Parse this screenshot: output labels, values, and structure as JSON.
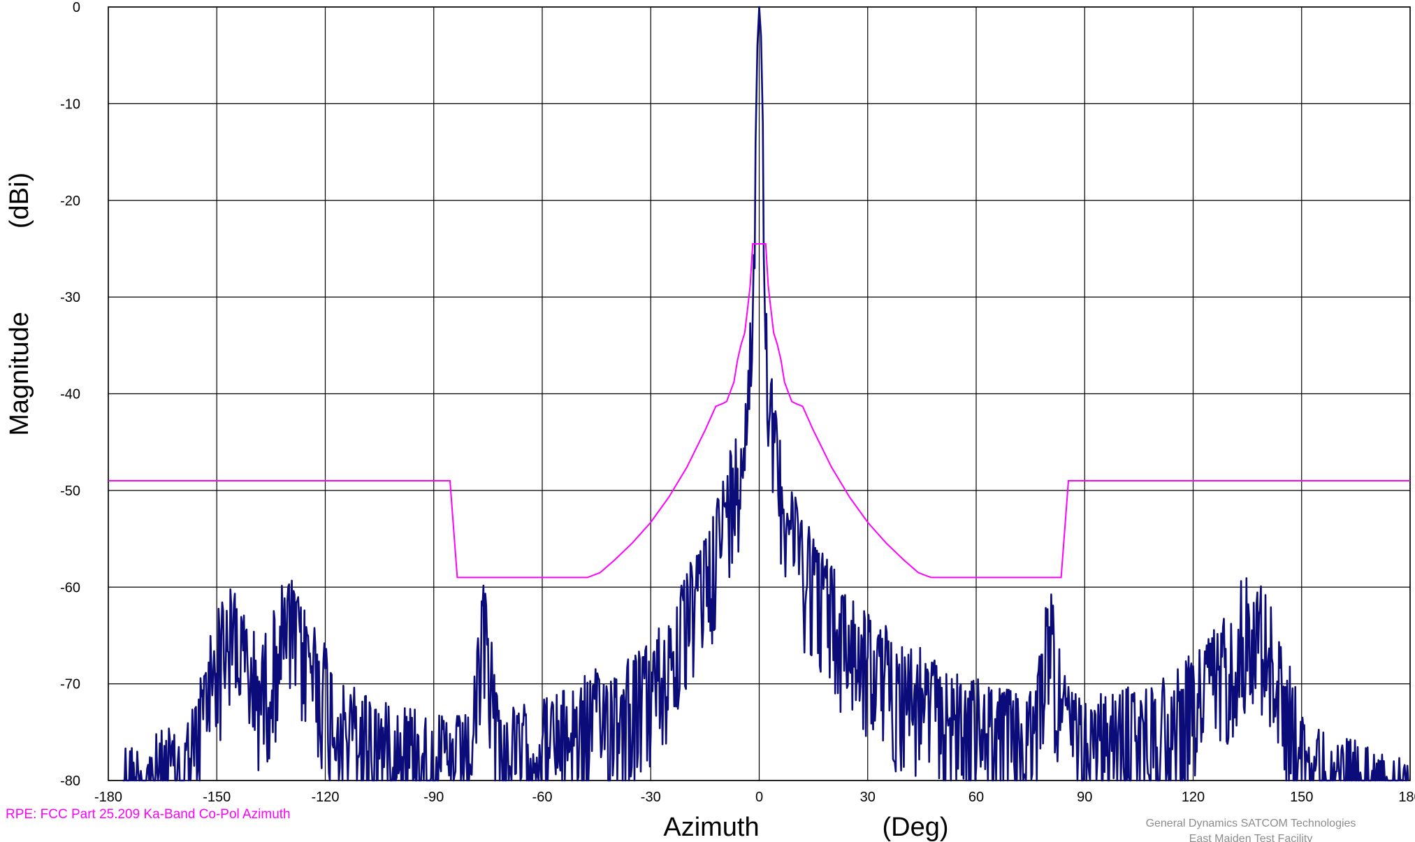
{
  "chart_data": {
    "type": "line",
    "xlabel": [
      "Azimuth",
      "(Deg)"
    ],
    "ylabel": [
      "Magnitude",
      "(dBi)"
    ],
    "xlim": [
      -180,
      180
    ],
    "ylim": [
      -80,
      0
    ],
    "xticks": [
      -180,
      -150,
      -120,
      -90,
      -60,
      -30,
      0,
      30,
      60,
      90,
      120,
      150,
      180
    ],
    "yticks": [
      0,
      -10,
      -20,
      -30,
      -40,
      -50,
      -60,
      -70,
      -80
    ],
    "grid": true,
    "annotations": {
      "rpe_label": "RPE: FCC Part 25.209 Ka-Band Co-Pol Azimuth",
      "credit_line1": "General Dynamics SATCOM Technologies",
      "credit_line2": "East Maiden Test Facility"
    },
    "colors": {
      "measured": "#0b0b7a",
      "rpe": "#ff00ff",
      "grid": "#000000"
    },
    "series": [
      {
        "key": "rpe",
        "x": [
          -180,
          -85.5,
          -83.5,
          -47.5,
          -44,
          -40,
          -35,
          -30,
          -25,
          -20,
          -15,
          -12,
          -10,
          -9,
          -7,
          -6,
          -5,
          -4,
          -3,
          -2.5,
          -1.8,
          1.8,
          2.5,
          3,
          4,
          5,
          6,
          7,
          9,
          10,
          12,
          15,
          20,
          25,
          30,
          35,
          40,
          44,
          47.5,
          83.5,
          85.5,
          180
        ],
        "y": [
          -49,
          -49,
          -59,
          -59,
          -58.5,
          -57.2,
          -55.4,
          -53.3,
          -50.7,
          -47.6,
          -43.8,
          -41.3,
          -41,
          -40.8,
          -38.8,
          -36.5,
          -34.9,
          -33.7,
          -30.5,
          -28.8,
          -24.5,
          -24.5,
          -28.8,
          -30.5,
          -33.7,
          -34.9,
          -36.5,
          -38.8,
          -40.8,
          -41,
          -41.3,
          -43.8,
          -47.6,
          -50.7,
          -53.3,
          -55.4,
          -57.2,
          -58.5,
          -59,
          -59,
          -49,
          -49
        ]
      },
      {
        "key": "measured",
        "envelope": {
          "x": [
            -180,
            -172,
            -165,
            -160,
            -157,
            -154,
            -151,
            -148,
            -145,
            -142,
            -139,
            -136,
            -133,
            -130,
            -127,
            -124,
            -121,
            -118,
            -115,
            -110,
            -100,
            -90,
            -84,
            -80,
            -78,
            -76,
            -74,
            -72,
            -70,
            -60,
            -50,
            -40,
            -30,
            -25,
            -20,
            -16,
            -12,
            -10,
            -8,
            -6,
            -5,
            -4,
            -3,
            -2,
            -1.5,
            -1,
            -0.5,
            0,
            0.5,
            1,
            1.5,
            2,
            3,
            4,
            5,
            6,
            8,
            10,
            12,
            16,
            20,
            25,
            30,
            40,
            50,
            60,
            70,
            75,
            78,
            80,
            82,
            85,
            90,
            100,
            110,
            115,
            120,
            125,
            130,
            133,
            136,
            139,
            142,
            145,
            148,
            150,
            153,
            156,
            160,
            165,
            170,
            175,
            180
          ],
          "y": [
            -77,
            -76,
            -75,
            -75,
            -73,
            -69,
            -63,
            -61,
            -60,
            -63,
            -66,
            -65,
            -61,
            -59,
            -61,
            -63,
            -65,
            -68,
            -70,
            -71,
            -72,
            -73,
            -74,
            -73,
            -66,
            -59,
            -65,
            -72,
            -73,
            -72,
            -70,
            -68,
            -66,
            -63,
            -59,
            -55,
            -51,
            -49,
            -46,
            -44,
            -41,
            -38,
            -35,
            -30,
            -24,
            -14,
            -4,
            0,
            -3,
            -12,
            -22,
            -30,
            -36,
            -40,
            -43,
            -45,
            -48,
            -50,
            -52,
            -55,
            -58,
            -61,
            -63,
            -66,
            -68,
            -70,
            -71,
            -71,
            -66,
            -59,
            -64,
            -70,
            -72,
            -71,
            -70,
            -69,
            -67,
            -65,
            -62,
            -60,
            -58.5,
            -60,
            -63,
            -67,
            -70,
            -73,
            -75,
            -75,
            -76,
            -76,
            -77,
            -77,
            -78
          ]
        },
        "spread_db": 14,
        "sample_step_deg": 0.25
      }
    ]
  }
}
